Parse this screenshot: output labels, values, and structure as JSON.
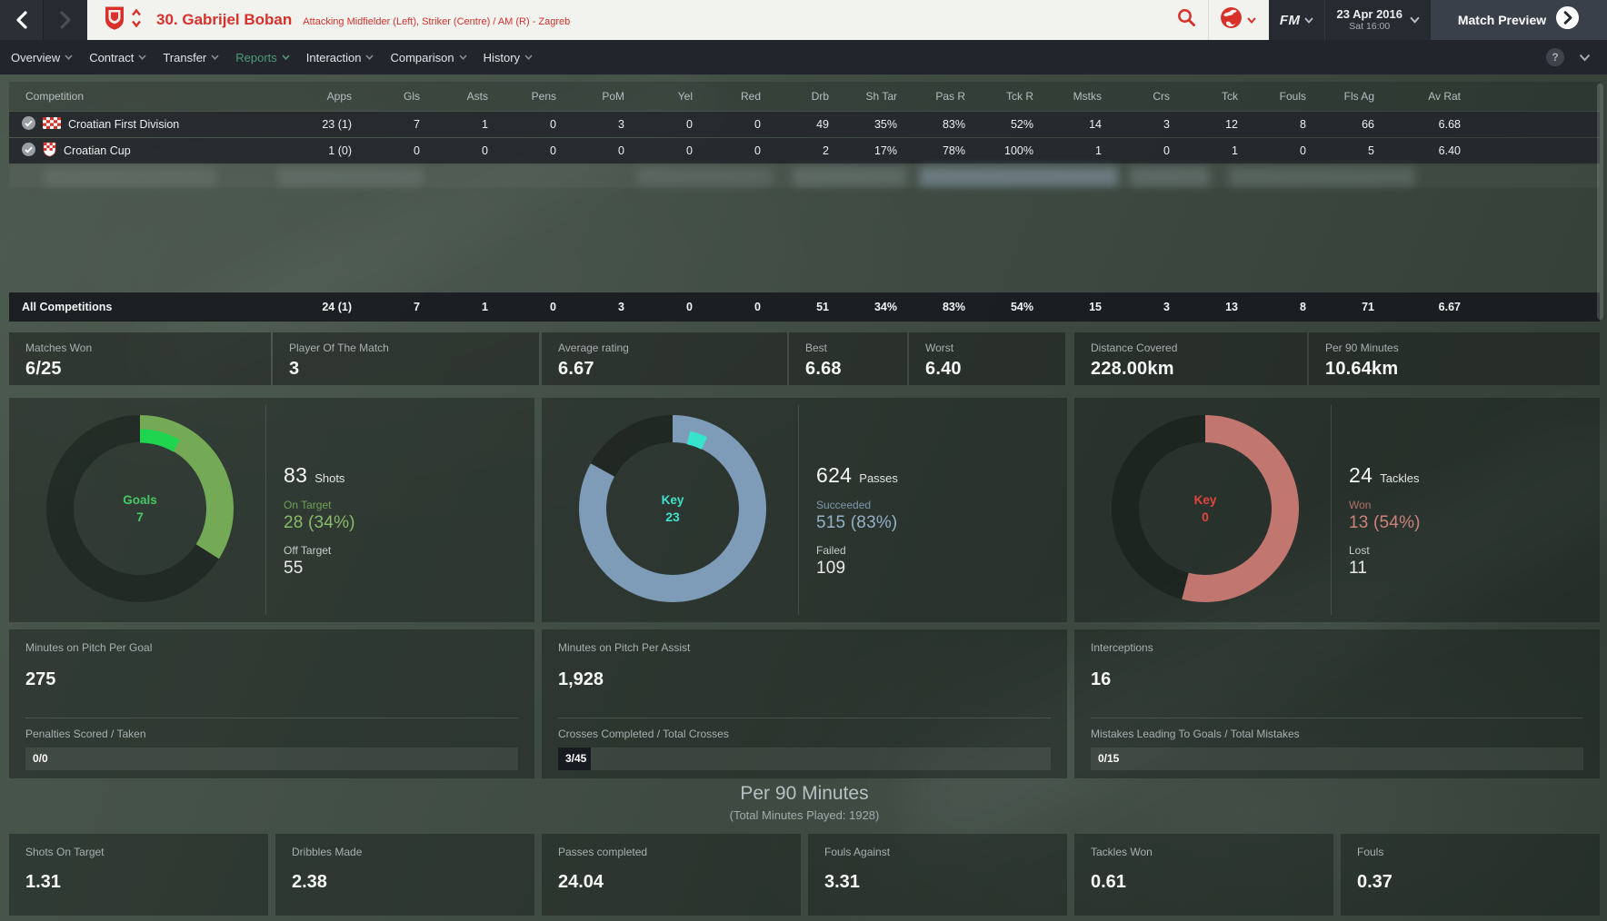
{
  "titlebar": {
    "player_name": "30. Gabrijel Boban",
    "player_position": "Attacking Midfielder (Left), Striker (Centre) / AM (R) - Zagreb",
    "fm_logo": "FM",
    "date_line1": "23 Apr 2016",
    "date_line2": "Sat 16:00",
    "match_preview_label": "Match Preview"
  },
  "nav": {
    "items": [
      {
        "label": "Overview",
        "active": false
      },
      {
        "label": "Contract",
        "active": false
      },
      {
        "label": "Transfer",
        "active": false
      },
      {
        "label": "Reports",
        "active": true
      },
      {
        "label": "Interaction",
        "active": false
      },
      {
        "label": "Comparison",
        "active": false
      },
      {
        "label": "History",
        "active": false
      }
    ],
    "help_label": "?"
  },
  "stats_table": {
    "columns": [
      "Competition",
      "Apps",
      "Gls",
      "Asts",
      "Pens",
      "PoM",
      "Yel",
      "Red",
      "Drb",
      "Sh Tar",
      "Pas R",
      "Tck R",
      "Mstks",
      "Crs",
      "Tck",
      "Fouls",
      "Fls Ag",
      "Av Rat"
    ],
    "rows": [
      {
        "competition": "Croatian First Division",
        "icon": "croatia-flag",
        "checked": true,
        "values": [
          "23 (1)",
          "7",
          "1",
          "0",
          "3",
          "0",
          "0",
          "49",
          "35%",
          "83%",
          "52%",
          "14",
          "3",
          "12",
          "8",
          "66",
          "6.68"
        ]
      },
      {
        "competition": "Croatian Cup",
        "icon": "croatia-crest",
        "checked": true,
        "values": [
          "1 (0)",
          "0",
          "0",
          "0",
          "0",
          "0",
          "0",
          "2",
          "17%",
          "78%",
          "100%",
          "1",
          "0",
          "1",
          "0",
          "5",
          "6.40"
        ]
      }
    ],
    "total_row": {
      "competition": "All Competitions",
      "values": [
        "24 (1)",
        "7",
        "1",
        "0",
        "3",
        "0",
        "0",
        "51",
        "34%",
        "83%",
        "54%",
        "15",
        "3",
        "13",
        "8",
        "71",
        "6.67"
      ]
    }
  },
  "summary_strip": [
    {
      "label": "Matches Won",
      "value": "6/25"
    },
    {
      "label": "Player Of The Match",
      "value": "3"
    },
    {
      "label": "Average rating",
      "value": "6.67"
    },
    {
      "label": "Best",
      "value": "6.68"
    },
    {
      "label": "Worst",
      "value": "6.40"
    },
    {
      "label": "Distance Covered",
      "value": "228.00km"
    },
    {
      "label": "Per 90 Minutes",
      "value": "10.64km"
    }
  ],
  "chart_data": [
    {
      "type": "pie",
      "variant": "donut",
      "id": "shots",
      "center_label": "Goals",
      "center_value": "7",
      "center_color": "#49c765",
      "headline_value": "83",
      "headline_label": "Shots",
      "arc_pct": 34,
      "arc_color": "#74aa55",
      "highlight_pct": 8.4,
      "highlight_start_pct": 0,
      "highlight_color": "#1fd44f",
      "segments_note": "arc = shots on target share, highlight = goals share of shots",
      "rows": [
        {
          "label": "On Target",
          "value": "28 (34%)",
          "label_color": "#6fa054",
          "value_color": "#8abb6a"
        },
        {
          "label": "Off Target",
          "value": "55",
          "label_color": "#c9cdcd",
          "value_color": "#e9ebeb"
        }
      ]
    },
    {
      "type": "pie",
      "variant": "donut",
      "id": "passes",
      "center_label": "Key",
      "center_value": "23",
      "center_color": "#3fe2ca",
      "headline_value": "624",
      "headline_label": "Passes",
      "arc_pct": 83,
      "arc_color": "#7e9cb7",
      "highlight_pct": 3.7,
      "highlight_start_pct": 3.5,
      "highlight_color": "#39e3cb",
      "segments_note": "arc = passes succeeded share, highlight = key passes share",
      "rows": [
        {
          "label": "Succeeded",
          "value": "515 (83%)",
          "label_color": "#7f99ae",
          "value_color": "#95b1c7"
        },
        {
          "label": "Failed",
          "value": "109",
          "label_color": "#c9cdcd",
          "value_color": "#e9ebeb"
        }
      ]
    },
    {
      "type": "pie",
      "variant": "donut",
      "id": "tackles",
      "center_label": "Key",
      "center_value": "0",
      "center_color": "#e2453c",
      "headline_value": "24",
      "headline_label": "Tackles",
      "arc_pct": 54,
      "arc_color": "#c17670",
      "highlight_pct": 0,
      "highlight_start_pct": 0,
      "highlight_color": "#e2453c",
      "segments_note": "arc = tackles won share",
      "rows": [
        {
          "label": "Won",
          "value": "13 (54%)",
          "label_color": "#b26f69",
          "value_color": "#cd837c"
        },
        {
          "label": "Lost",
          "value": "11",
          "label_color": "#c9cdcd",
          "value_color": "#e9ebeb"
        }
      ]
    }
  ],
  "detail_panels": [
    {
      "stat_label": "Minutes on Pitch Per Goal",
      "stat_value": "275",
      "bar_label": "Penalties Scored / Taken",
      "bar_value": "0/0",
      "bar_numerator": 0,
      "bar_denominator": 0
    },
    {
      "stat_label": "Minutes on Pitch Per Assist",
      "stat_value": "1,928",
      "bar_label": "Crosses Completed / Total Crosses",
      "bar_value": "3/45",
      "bar_numerator": 3,
      "bar_denominator": 45
    },
    {
      "stat_label": "Interceptions",
      "stat_value": "16",
      "bar_label": "Mistakes Leading To Goals / Total Mistakes",
      "bar_value": "0/15",
      "bar_numerator": 0,
      "bar_denominator": 15
    }
  ],
  "per90": {
    "title": "Per 90 Minutes",
    "subtitle": "(Total Minutes Played: 1928)",
    "stats": [
      {
        "label": "Shots On Target",
        "value": "1.31"
      },
      {
        "label": "Dribbles Made",
        "value": "2.38"
      },
      {
        "label": "Passes completed",
        "value": "24.04"
      },
      {
        "label": "Fouls Against",
        "value": "3.31"
      },
      {
        "label": "Tackles Won",
        "value": "0.61"
      },
      {
        "label": "Fouls",
        "value": "0.37"
      }
    ]
  },
  "colors": {
    "brand_red": "#d8312a",
    "active_tab_green": "#4d9c76",
    "header_bg": "#f2f2ef",
    "dark_bar": "#262a31"
  }
}
